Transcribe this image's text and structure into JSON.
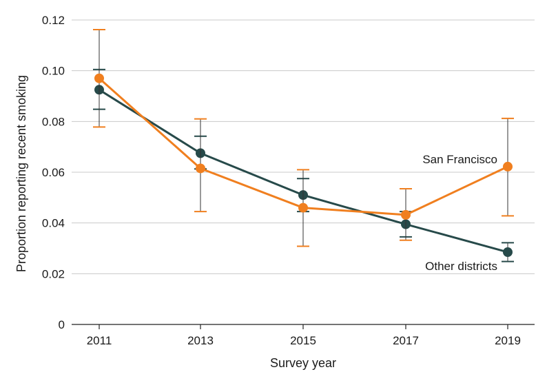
{
  "chart_data": {
    "type": "line",
    "xlabel": "Survey year",
    "ylabel": "Proportion reporting recent smoking",
    "x": [
      "2011",
      "2013",
      "2015",
      "2017",
      "2019"
    ],
    "ylim": [
      0,
      0.12
    ],
    "yticks": [
      "0",
      "0.02",
      "0.04",
      "0.06",
      "0.08",
      "0.10",
      "0.12"
    ],
    "grid": "horizontal",
    "series": [
      {
        "name": "Other districts",
        "color": "#274a4a",
        "values": [
          0.0925,
          0.0675,
          0.051,
          0.0395,
          0.0285
        ],
        "ci_lower": [
          0.0848,
          0.0613,
          0.0445,
          0.0345,
          0.0248
        ],
        "ci_upper": [
          0.1005,
          0.0742,
          0.0575,
          0.0445,
          0.0322
        ]
      },
      {
        "name": "San Francisco",
        "color": "#f07f1f",
        "values": [
          0.097,
          0.0615,
          0.046,
          0.0432,
          0.0622
        ],
        "ci_lower": [
          0.0778,
          0.0445,
          0.0308,
          0.0332,
          0.0428
        ],
        "ci_upper": [
          0.1162,
          0.081,
          0.061,
          0.0535,
          0.0812
        ]
      }
    ]
  }
}
